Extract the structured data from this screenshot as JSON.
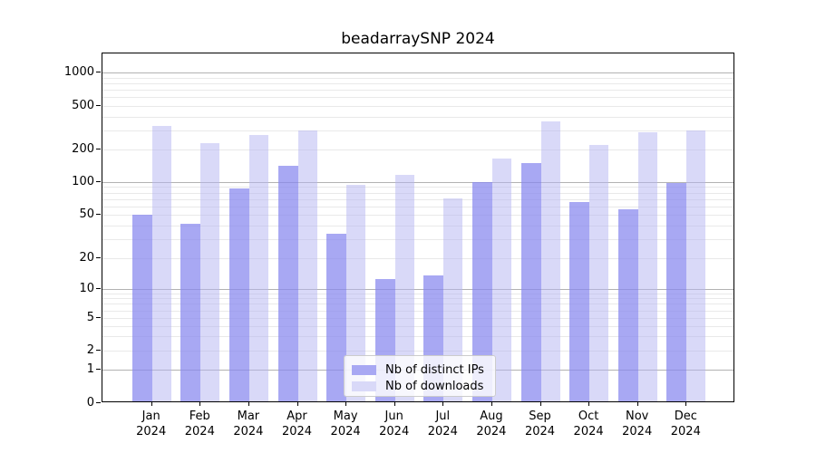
{
  "title": "beadarraySNP 2024",
  "y_axis": {
    "tick_labels": [
      "1000",
      "500",
      "200",
      "100",
      "50",
      "20",
      "10",
      "5",
      "2",
      "1",
      "0"
    ]
  },
  "x_axis": {
    "months": [
      "Jan",
      "Feb",
      "Mar",
      "Apr",
      "May",
      "Jun",
      "Jul",
      "Aug",
      "Sep",
      "Oct",
      "Nov",
      "Dec"
    ],
    "year": "2024"
  },
  "legend": {
    "items": [
      {
        "label": "Nb of distinct IPs",
        "key": "distinct_ips"
      },
      {
        "label": "Nb of downloads",
        "key": "downloads"
      }
    ]
  },
  "colors": {
    "distinct_ips_solid": "#a8a8f3",
    "downloads_solid": "#d9d9f8",
    "distinct_ips_fill": "rgba(134,134,238,0.72)",
    "downloads_fill": "rgba(179,179,241,0.5)",
    "major_grid": "#b2b2b2",
    "minor_grid": "#e9e9e9",
    "frame": "#000000",
    "legend_border": "#cccccc"
  },
  "chart_data": {
    "type": "bar",
    "title": "beadarraySNP 2024",
    "categories": [
      "Jan 2024",
      "Feb 2024",
      "Mar 2024",
      "Apr 2024",
      "May 2024",
      "Jun 2024",
      "Jul 2024",
      "Aug 2024",
      "Sep 2024",
      "Oct 2024",
      "Nov 2024",
      "Dec 2024"
    ],
    "series": [
      {
        "name": "Nb of distinct IPs",
        "values": [
          48,
          40,
          84,
          135,
          32,
          12,
          13,
          96,
          143,
          63,
          54,
          94
        ]
      },
      {
        "name": "Nb of downloads",
        "values": [
          315,
          222,
          260,
          288,
          90,
          112,
          68,
          160,
          345,
          210,
          276,
          288
        ]
      }
    ],
    "yscale": "log-like with 0 baseline",
    "y_ticks": [
      0,
      1,
      2,
      5,
      10,
      20,
      50,
      100,
      200,
      500,
      1000
    ],
    "ylim": [
      0,
      1400
    ],
    "grid": "horizontal major (1,10,100,1000) + faint log minors",
    "legend_position": "lower center"
  }
}
